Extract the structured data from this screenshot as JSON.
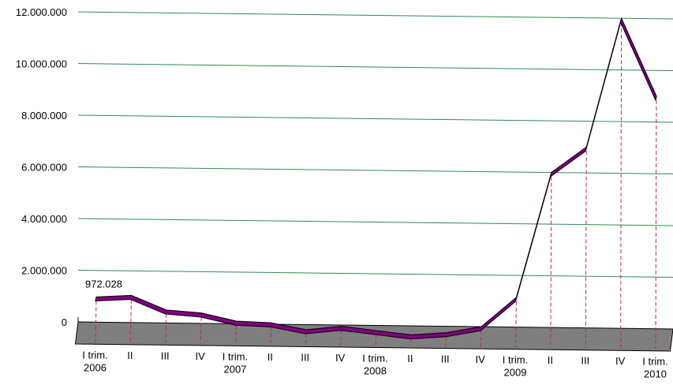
{
  "chart_data": {
    "type": "line",
    "title": "",
    "xlabel": "",
    "ylabel": "",
    "ylim": [
      0,
      12000000
    ],
    "yticks": [
      "0",
      "2.000.000",
      "4.000.000",
      "6.000.000",
      "8.000.000",
      "10.000.000",
      "12.000.000"
    ],
    "grid": true,
    "categories": [
      [
        "I trim.",
        "2006"
      ],
      [
        "II"
      ],
      [
        "III"
      ],
      [
        "IV"
      ],
      [
        "I trim.",
        "2007"
      ],
      [
        "II"
      ],
      [
        "III"
      ],
      [
        "IV"
      ],
      [
        "I trim.",
        "2008"
      ],
      [
        "II"
      ],
      [
        "III"
      ],
      [
        "IV"
      ],
      [
        "I trim.",
        "2009"
      ],
      [
        "II"
      ],
      [
        "III"
      ],
      [
        "IV"
      ],
      [
        "I trim.",
        "2010"
      ]
    ],
    "series": [
      {
        "values": [
          972028,
          1050000,
          500000,
          400000,
          100000,
          50000,
          -200000,
          -50000,
          -200000,
          -350000,
          -250000,
          0,
          1150000,
          6000000,
          7000000,
          12000000,
          9000000
        ]
      }
    ],
    "annotations": [
      {
        "index": 0,
        "text": "972.028"
      }
    ],
    "colors": {
      "grid": "#2e8b57",
      "ribbon_fill": "#800080",
      "ribbon_edge": "#1a001a",
      "floor": "#7f7f7f",
      "dropline": "#b03050"
    }
  }
}
